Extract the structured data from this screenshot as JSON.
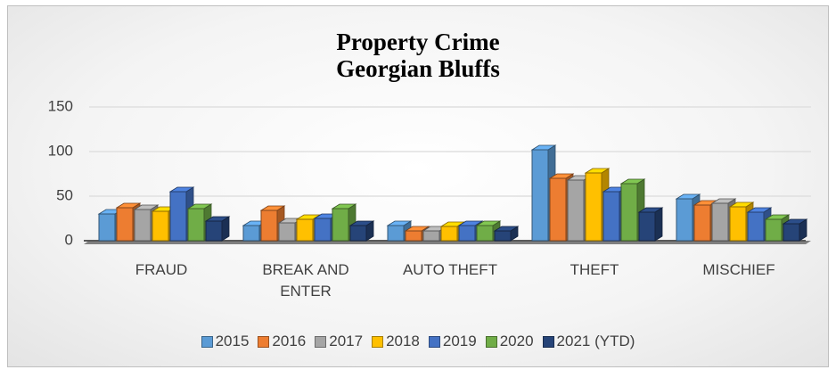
{
  "chart_data": {
    "type": "bar3d",
    "title": "Property Crime\nGeorgian Bluffs",
    "categories": [
      "FRAUD",
      "BREAK AND ENTER",
      "AUTO THEFT",
      "THEFT",
      "MISCHIEF"
    ],
    "series": [
      {
        "name": "2015",
        "color": "#5b9bd5",
        "values": [
          30,
          17,
          17,
          102,
          47
        ]
      },
      {
        "name": "2016",
        "color": "#ed7d31",
        "values": [
          37,
          34,
          11,
          70,
          40
        ]
      },
      {
        "name": "2017",
        "color": "#a5a5a5",
        "values": [
          35,
          20,
          11,
          68,
          42
        ]
      },
      {
        "name": "2018",
        "color": "#ffc000",
        "values": [
          33,
          24,
          16,
          76,
          38
        ]
      },
      {
        "name": "2019",
        "color": "#4472c4",
        "values": [
          55,
          25,
          17,
          55,
          32
        ]
      },
      {
        "name": "2020",
        "color": "#70ad47",
        "values": [
          36,
          36,
          17,
          64,
          24
        ]
      },
      {
        "name": "2021 (YTD)",
        "color": "#264478",
        "values": [
          22,
          17,
          11,
          32,
          19
        ]
      }
    ],
    "ylim": [
      0,
      150
    ],
    "yticks": [
      0,
      50,
      100,
      150
    ],
    "grid": true,
    "legend": "bottom"
  }
}
